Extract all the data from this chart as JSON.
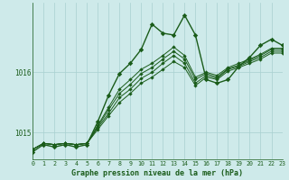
{
  "title": "Graphe pression niveau de la mer (hPa)",
  "bg_color": "#ceeaea",
  "line_color": "#1a5c1a",
  "grid_color": "#a8d0d0",
  "x_min": 0,
  "x_max": 23,
  "y_min": 1014.55,
  "y_max": 1017.15,
  "yticks": [
    1015,
    1016
  ],
  "series": [
    [
      1014.72,
      1014.82,
      1014.8,
      1014.82,
      1014.8,
      1014.82,
      1015.05,
      1015.28,
      1015.5,
      1015.65,
      1015.82,
      1015.92,
      1016.05,
      1016.18,
      1016.08,
      1015.78,
      1015.92,
      1015.88,
      1016.02,
      1016.08,
      1016.15,
      1016.22,
      1016.32,
      1016.32
    ],
    [
      1014.72,
      1014.82,
      1014.8,
      1014.82,
      1014.8,
      1014.82,
      1015.08,
      1015.32,
      1015.58,
      1015.72,
      1015.9,
      1016.0,
      1016.15,
      1016.28,
      1016.15,
      1015.82,
      1015.95,
      1015.9,
      1016.05,
      1016.1,
      1016.18,
      1016.25,
      1016.35,
      1016.35
    ],
    [
      1014.72,
      1014.82,
      1014.8,
      1014.82,
      1014.8,
      1014.82,
      1015.1,
      1015.38,
      1015.65,
      1015.8,
      1015.98,
      1016.08,
      1016.22,
      1016.35,
      1016.22,
      1015.88,
      1015.98,
      1015.92,
      1016.06,
      1016.12,
      1016.2,
      1016.28,
      1016.38,
      1016.38
    ],
    [
      1014.72,
      1014.82,
      1014.8,
      1014.82,
      1014.8,
      1014.82,
      1015.12,
      1015.42,
      1015.72,
      1015.88,
      1016.05,
      1016.15,
      1016.28,
      1016.42,
      1016.28,
      1015.92,
      1016.0,
      1015.95,
      1016.08,
      1016.15,
      1016.22,
      1016.3,
      1016.4,
      1016.4
    ]
  ],
  "main_series": [
    1014.68,
    1014.8,
    1014.76,
    1014.8,
    1014.76,
    1014.8,
    1015.18,
    1015.62,
    1015.98,
    1016.15,
    1016.38,
    1016.8,
    1016.65,
    1016.62,
    1016.95,
    1016.62,
    1015.88,
    1015.82,
    1015.88,
    1016.1,
    1016.25,
    1016.45,
    1016.55,
    1016.45
  ],
  "lw_main": 1.0,
  "lw_band": 0.7,
  "marker_size_main": 2.8,
  "marker_size_band": 2.2
}
